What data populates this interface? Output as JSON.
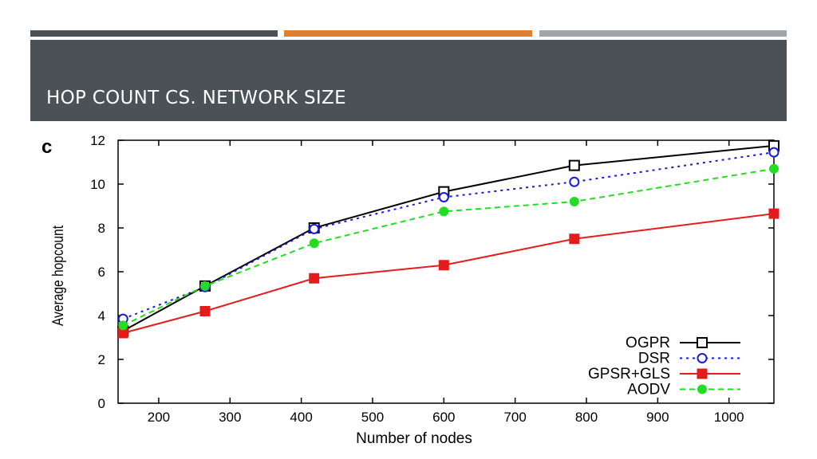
{
  "slide": {
    "title": "HOP COUNT CS. NETWORK SIZE",
    "accent_bars": [
      "#4a5257",
      "#e0802f",
      "#a1a6aa"
    ],
    "header_color": "#4a5257"
  },
  "chart_data": {
    "type": "line",
    "panel_label": "c",
    "xlabel": "Number of nodes",
    "ylabel": "Average hopcount",
    "xlim": [
      143,
      1063
    ],
    "ylim": [
      0,
      12
    ],
    "xticks": [
      200,
      300,
      400,
      500,
      600,
      700,
      800,
      900,
      1000
    ],
    "yticks": [
      0,
      2,
      4,
      6,
      8,
      10,
      12
    ],
    "grid": false,
    "legend_position": "bottom-right",
    "x": [
      150,
      265,
      418,
      600,
      783,
      1063
    ],
    "series": [
      {
        "name": "OGPR",
        "color": "#000000",
        "marker": "open-square",
        "dash": "solid",
        "values": [
          3.3,
          5.35,
          8.0,
          9.65,
          10.85,
          11.75
        ]
      },
      {
        "name": "DSR",
        "color": "#1a1adb",
        "marker": "open-circle",
        "dash": "dotted",
        "values": [
          3.85,
          5.3,
          7.95,
          9.4,
          10.1,
          11.45
        ]
      },
      {
        "name": "GPSR+GLS",
        "color": "#e51c1c",
        "marker": "filled-square",
        "dash": "solid",
        "values": [
          3.2,
          4.2,
          5.7,
          6.3,
          7.5,
          8.65
        ]
      },
      {
        "name": "AODV",
        "color": "#22dd22",
        "marker": "filled-circle",
        "dash": "dashed",
        "values": [
          3.55,
          5.35,
          7.3,
          8.75,
          9.2,
          10.7
        ]
      }
    ]
  }
}
